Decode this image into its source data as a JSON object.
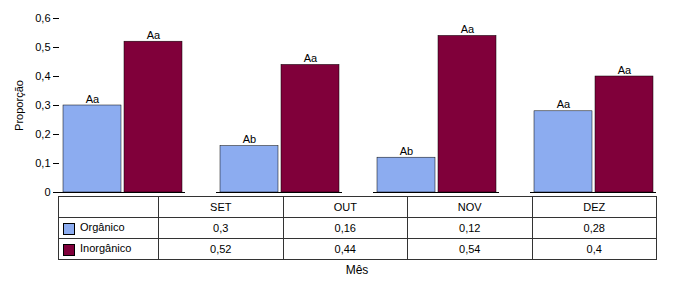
{
  "chart_data": {
    "type": "bar",
    "categories": [
      "SET",
      "OUT",
      "NOV",
      "DEZ"
    ],
    "series": [
      {
        "name": "Orgânico",
        "color": "#8cacf0",
        "values": [
          0.3,
          0.16,
          0.12,
          0.28
        ],
        "value_labels": [
          "0,3",
          "0,16",
          "0,12",
          "0,28"
        ],
        "annotations": [
          "Aa",
          "Ab",
          "Ab",
          "Aa"
        ]
      },
      {
        "name": "Inorgânico",
        "color": "#80003a",
        "values": [
          0.52,
          0.44,
          0.54,
          0.4
        ],
        "value_labels": [
          "0,52",
          "0,44",
          "0,54",
          "0,4"
        ],
        "annotations": [
          "Aa",
          "Aa",
          "Aa",
          "Aa"
        ]
      }
    ],
    "ylabel": "Proporção",
    "xlabel": "Mês",
    "ylim": [
      0,
      0.6
    ],
    "yticks": [
      0,
      {
        "value": 0.1,
        "label": "0,1"
      },
      {
        "value": 0.2,
        "label": "0,2"
      },
      {
        "value": 0.3,
        "label": "0,3"
      },
      {
        "value": 0.4,
        "label": "0,4"
      },
      {
        "value": 0.5,
        "label": "0,5"
      },
      {
        "value": 0.6,
        "label": "0,6"
      }
    ],
    "grid": false,
    "tick_labels": "y"
  }
}
